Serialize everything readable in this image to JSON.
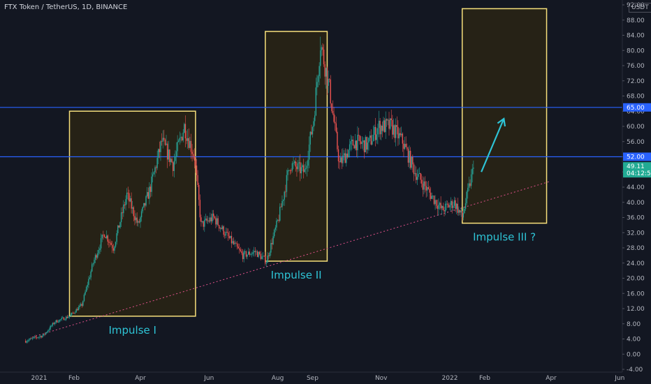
{
  "header": {
    "symbol_title": "FTX Token / TetherUS, 1D, BINANCE",
    "currency": "USDT"
  },
  "colors": {
    "background": "#131722",
    "candle_up": "#26a69a",
    "candle_down": "#ef5350",
    "level_line": "#2962ff",
    "box_stroke": "#f7e07b",
    "box_fill": "#2a2414",
    "trendline": "#e0508a",
    "arrow": "#2ec4d6",
    "label": "#2ec4d6",
    "last_price_tag": "#22ab94"
  },
  "chart_data": {
    "type": "candlestick",
    "title": "FTX Token / TetherUS, 1D, BINANCE",
    "ylim": [
      -4,
      92
    ],
    "y_ticks": [
      "92.00",
      "88.00",
      "84.00",
      "80.00",
      "76.00",
      "72.00",
      "68.00",
      "64.00",
      "60.00",
      "56.00",
      "52.00",
      "48.00",
      "44.00",
      "40.00",
      "36.00",
      "32.00",
      "28.00",
      "24.00",
      "20.00",
      "16.00",
      "12.00",
      "8.00",
      "4.00",
      "0.00",
      "-4.00"
    ],
    "x_ticks": [
      {
        "label": "2021",
        "date": "2021-01-01"
      },
      {
        "label": "Feb",
        "date": "2021-02-01"
      },
      {
        "label": "Apr",
        "date": "2021-04-01"
      },
      {
        "label": "Jun",
        "date": "2021-06-01"
      },
      {
        "label": "Aug",
        "date": "2021-08-01"
      },
      {
        "label": "Sep",
        "date": "2021-09-01"
      },
      {
        "label": "Nov",
        "date": "2021-11-01"
      },
      {
        "label": "2022",
        "date": "2022-01-01"
      },
      {
        "label": "Feb",
        "date": "2022-02-01"
      },
      {
        "label": "Apr",
        "date": "2022-04-01"
      },
      {
        "label": "Jun",
        "date": "2022-06-01"
      }
    ],
    "price_path": [
      {
        "date": "2020-12-20",
        "close": 3.5
      },
      {
        "date": "2021-01-05",
        "close": 5.0
      },
      {
        "date": "2021-01-15",
        "close": 8.5
      },
      {
        "date": "2021-01-28",
        "close": 10.0
      },
      {
        "date": "2021-02-08",
        "close": 13.0
      },
      {
        "date": "2021-02-18",
        "close": 24.0
      },
      {
        "date": "2021-02-28",
        "close": 32.0
      },
      {
        "date": "2021-03-08",
        "close": 28.0
      },
      {
        "date": "2021-03-20",
        "close": 42.0
      },
      {
        "date": "2021-03-30",
        "close": 34.0
      },
      {
        "date": "2021-04-10",
        "close": 44.0
      },
      {
        "date": "2021-04-20",
        "close": 56.0
      },
      {
        "date": "2021-04-30",
        "close": 50.0
      },
      {
        "date": "2021-05-10",
        "close": 60.0
      },
      {
        "date": "2021-05-19",
        "close": 52.0
      },
      {
        "date": "2021-05-25",
        "close": 34.0
      },
      {
        "date": "2021-06-05",
        "close": 36.0
      },
      {
        "date": "2021-06-20",
        "close": 30.0
      },
      {
        "date": "2021-07-01",
        "close": 26.0
      },
      {
        "date": "2021-07-12",
        "close": 27.0
      },
      {
        "date": "2021-07-22",
        "close": 24.5
      },
      {
        "date": "2021-08-02",
        "close": 36.0
      },
      {
        "date": "2021-08-12",
        "close": 50.0
      },
      {
        "date": "2021-08-25",
        "close": 48.0
      },
      {
        "date": "2021-09-02",
        "close": 62.0
      },
      {
        "date": "2021-09-08",
        "close": 82.0
      },
      {
        "date": "2021-09-16",
        "close": 70.0
      },
      {
        "date": "2021-09-25",
        "close": 50.0
      },
      {
        "date": "2021-10-08",
        "close": 56.0
      },
      {
        "date": "2021-10-20",
        "close": 55.0
      },
      {
        "date": "2021-10-30",
        "close": 60.0
      },
      {
        "date": "2021-11-10",
        "close": 60.0
      },
      {
        "date": "2021-11-20",
        "close": 56.0
      },
      {
        "date": "2021-12-01",
        "close": 48.0
      },
      {
        "date": "2021-12-15",
        "close": 42.0
      },
      {
        "date": "2021-12-25",
        "close": 38.0
      },
      {
        "date": "2022-01-05",
        "close": 40.0
      },
      {
        "date": "2022-01-12",
        "close": 36.0
      },
      {
        "date": "2022-01-22",
        "close": 49.11
      }
    ],
    "horizontal_levels": [
      {
        "price": 65.0,
        "label": "65.00"
      },
      {
        "price": 52.0,
        "label": "52.00"
      }
    ],
    "last_price": {
      "value": "49.11",
      "countdown": "04:12:55"
    },
    "trendline": {
      "points": [
        {
          "date": "2020-12-26",
          "price": 4.5
        },
        {
          "date": "2022-03-31",
          "price": 45.5
        }
      ]
    },
    "boxes": [
      {
        "label": "Impulse I",
        "from": "2021-01-28",
        "to": "2021-05-20",
        "low": 10.0,
        "high": 64.0
      },
      {
        "label": "Impulse II",
        "from": "2021-07-21",
        "to": "2021-09-14",
        "low": 24.5,
        "high": 85.0
      },
      {
        "label": "Impulse III ?",
        "from": "2022-01-12",
        "to": "2022-03-28",
        "low": 34.5,
        "high": 91.0
      }
    ],
    "arrow": {
      "from": {
        "date": "2022-01-29",
        "price": 48.0
      },
      "to": {
        "date": "2022-02-18",
        "price": 62.0
      }
    },
    "grid": false
  }
}
